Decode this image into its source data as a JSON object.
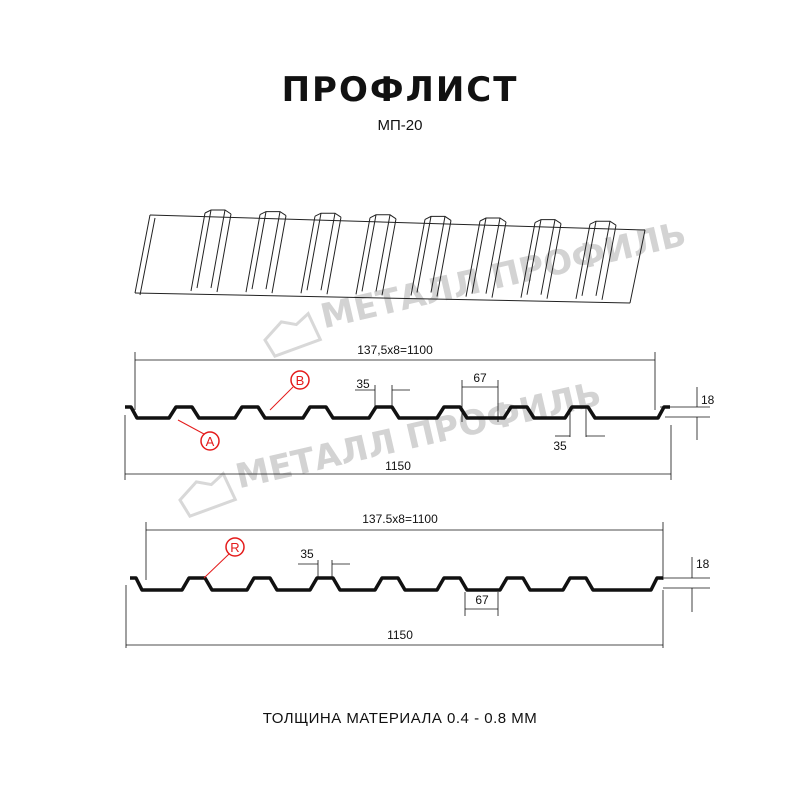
{
  "header": {
    "title": "ПРОФЛИСТ",
    "subtitle": "МП-20"
  },
  "watermark": {
    "text": "МЕТАЛЛ ПРОФИЛЬ",
    "color": "#d3d3d3"
  },
  "profile_a": {
    "pitch_label": "137,5x8=1100",
    "width_label": "1150",
    "height_label": "18",
    "top_rib_label": "35",
    "bottom_rib_label": "35",
    "valley_label": "67",
    "callout_a": "A",
    "callout_b": "B"
  },
  "profile_b": {
    "pitch_label": "137.5x8=1100",
    "width_label": "1150",
    "height_label": "18",
    "top_rib_label": "35",
    "valley_label": "67",
    "callout_r": "R"
  },
  "footer": {
    "thickness": "ТОЛЩИНА МАТЕРИАЛА 0.4 - 0.8 ММ"
  },
  "colors": {
    "line": "#111111",
    "callout": "#e41b1b"
  }
}
